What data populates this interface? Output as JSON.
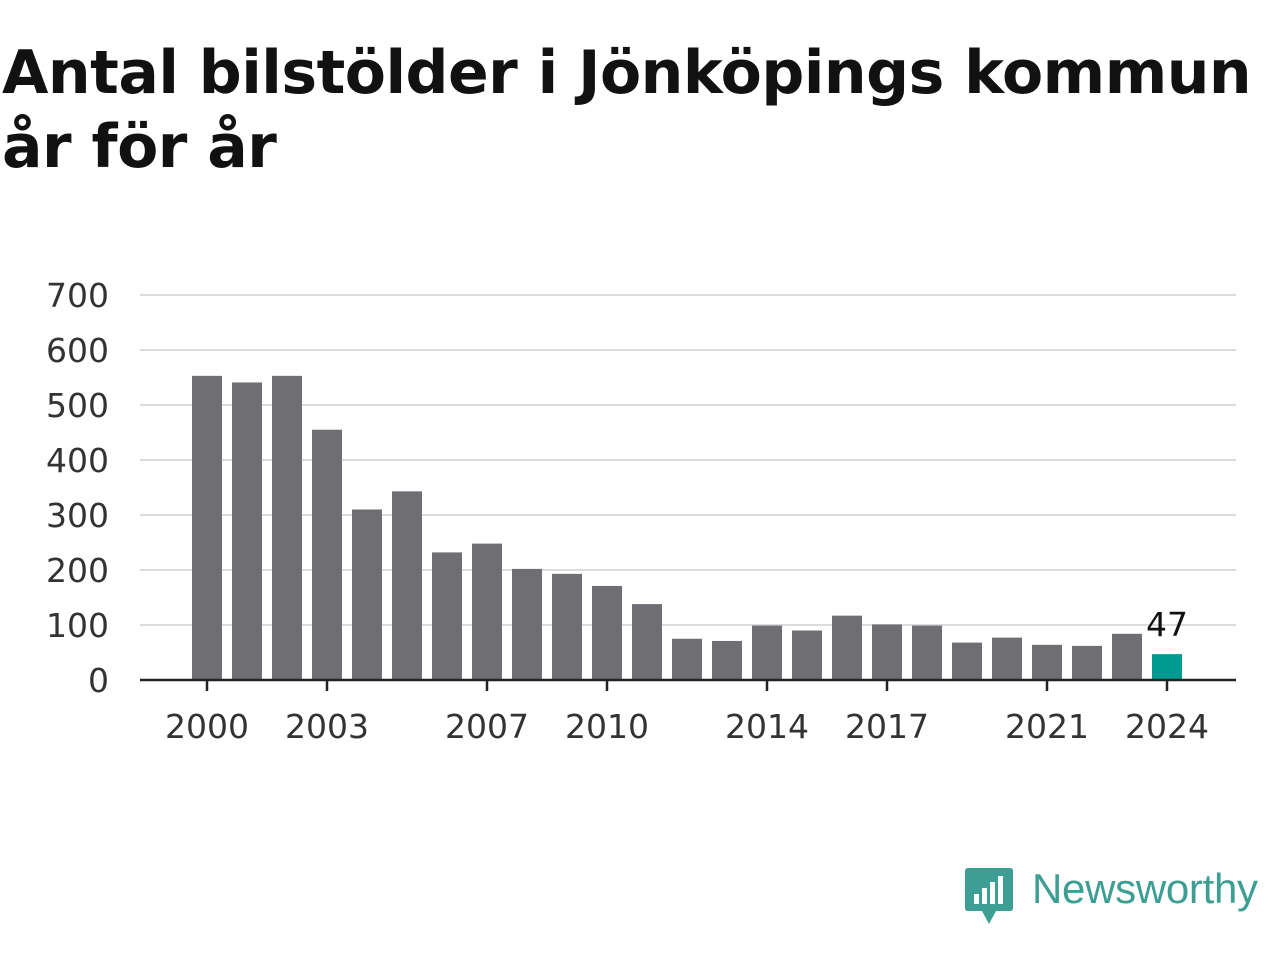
{
  "title": "Antal bilstölder i Jönköpings kommun år för år",
  "brand": {
    "name": "Newsworthy",
    "color": "#3d9e93",
    "icon": "newsworthy-logo-icon"
  },
  "colors": {
    "bar": "#6f6e73",
    "highlight": "#009b90",
    "grid": "#dcdcdc",
    "axis": "#222222"
  },
  "chart_data": {
    "type": "bar",
    "title": "Antal bilstölder i Jönköpings kommun år för år",
    "xlabel": "",
    "ylabel": "",
    "categories": [
      2000,
      2001,
      2002,
      2003,
      2004,
      2005,
      2006,
      2007,
      2008,
      2009,
      2010,
      2011,
      2012,
      2013,
      2014,
      2015,
      2016,
      2017,
      2018,
      2019,
      2020,
      2021,
      2022,
      2023,
      2024
    ],
    "values": [
      553,
      541,
      553,
      455,
      310,
      343,
      232,
      248,
      202,
      193,
      171,
      138,
      75,
      71,
      99,
      90,
      117,
      101,
      99,
      68,
      77,
      64,
      62,
      84,
      47
    ],
    "highlight_category": 2024,
    "ylim": [
      0,
      700
    ],
    "yticks": [
      0,
      100,
      200,
      300,
      400,
      500,
      600,
      700
    ],
    "xtick_labels": [
      "2000",
      "2003",
      "2007",
      "2010",
      "2014",
      "2017",
      "2021",
      "2024"
    ],
    "data_labels": [
      {
        "category": 2024,
        "text": "47"
      }
    ],
    "grid": true,
    "legend": "none"
  }
}
